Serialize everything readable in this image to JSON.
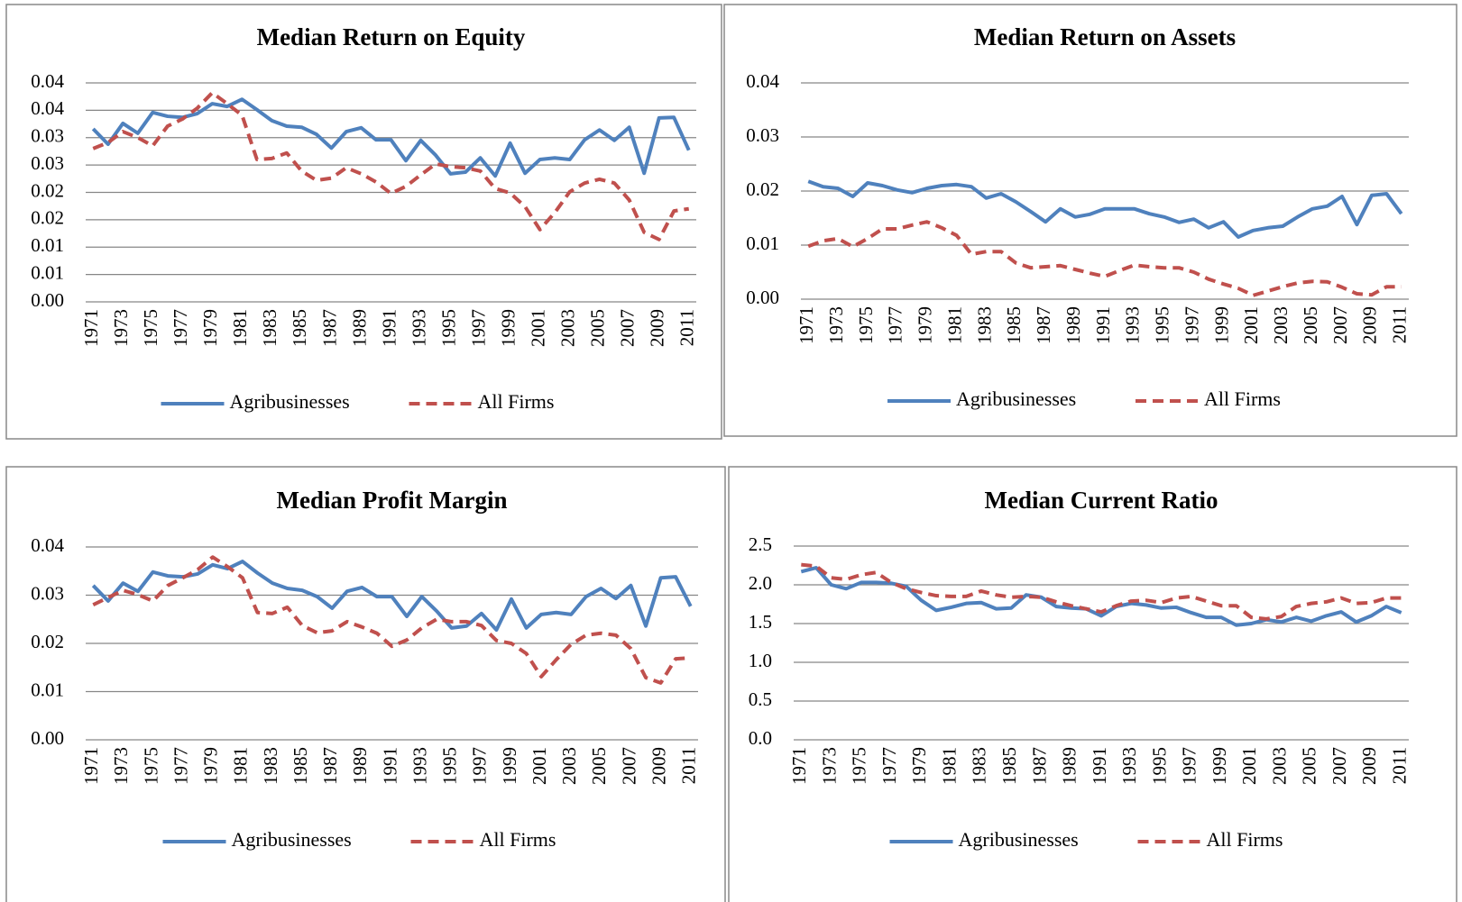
{
  "chart_data": [
    {
      "type": "line",
      "title": "Median Return on Equity",
      "categories": [
        "1971",
        null,
        "1973",
        null,
        "1975",
        null,
        "1977",
        null,
        "1979",
        null,
        "1981",
        null,
        "1983",
        null,
        "1985",
        null,
        "1987",
        null,
        "1989",
        null,
        "1991",
        null,
        "1993",
        null,
        "1995",
        null,
        "1997",
        null,
        "1999",
        null,
        "2001",
        null,
        "2003",
        null,
        "2005",
        null,
        "2007",
        null,
        "2009",
        null,
        "2011"
      ],
      "series": [
        {
          "name": "Agribusinesses",
          "color": "#4f81bd",
          "style": "solid",
          "values": [
            0.0316,
            0.0288,
            0.0326,
            0.0308,
            0.0346,
            0.0339,
            0.0337,
            0.0344,
            0.0362,
            0.0357,
            0.037,
            0.0351,
            0.0331,
            0.0321,
            0.0319,
            0.0306,
            0.0281,
            0.0311,
            0.0318,
            0.0296,
            0.0296,
            0.0258,
            0.0295,
            0.0268,
            0.0234,
            0.0237,
            0.0263,
            0.023,
            0.029,
            0.0235,
            0.026,
            0.0263,
            0.026,
            0.0296,
            0.0314,
            0.0295,
            0.0319,
            0.0235,
            0.0336,
            0.0337,
            0.0277
          ]
        },
        {
          "name": "All Firms",
          "color": "#c0504d",
          "style": "dashed",
          "values": [
            0.028,
            0.0291,
            0.0311,
            0.03,
            0.0285,
            0.0321,
            0.0334,
            0.0354,
            0.0382,
            0.0362,
            0.0341,
            0.026,
            0.0262,
            0.0272,
            0.0239,
            0.0222,
            0.0226,
            0.0245,
            0.0234,
            0.0219,
            0.0198,
            0.0211,
            0.0232,
            0.0252,
            0.0247,
            0.0245,
            0.0239,
            0.0207,
            0.0199,
            0.0174,
            0.0132,
            0.0163,
            0.0201,
            0.0217,
            0.0224,
            0.0217,
            0.0186,
            0.0127,
            0.0114,
            0.0166,
            0.017
          ]
        }
      ],
      "ylim": [
        0,
        0.04
      ],
      "yticks": [
        {
          "value": 0,
          "label": "0.00"
        },
        {
          "value": 0.005,
          "label": "0.01"
        },
        0.01,
        {
          "value": 0.015,
          "label": "0.02"
        },
        0.02,
        {
          "value": 0.025,
          "label": "0.03"
        },
        0.03,
        {
          "value": 0.035,
          "label": "0.04"
        },
        0.04
      ],
      "grid": true,
      "legend": "bottom"
    },
    {
      "type": "line",
      "title": "Median Return on Assets",
      "categories": [
        "1971",
        null,
        "1973",
        null,
        "1975",
        null,
        "1977",
        null,
        "1979",
        null,
        "1981",
        null,
        "1983",
        null,
        "1985",
        null,
        "1987",
        null,
        "1989",
        null,
        "1991",
        null,
        "1993",
        null,
        "1995",
        null,
        "1997",
        null,
        "1999",
        null,
        "2001",
        null,
        "2003",
        null,
        "2005",
        null,
        "2007",
        null,
        "2009",
        null,
        "2011"
      ],
      "series": [
        {
          "name": "Agribusinesses",
          "color": "#4f81bd",
          "style": "solid",
          "values": [
            0.0218,
            0.0208,
            0.0205,
            0.019,
            0.0215,
            0.021,
            0.0202,
            0.0197,
            0.0205,
            0.021,
            0.0212,
            0.0208,
            0.0187,
            0.0195,
            0.018,
            0.0162,
            0.0143,
            0.0167,
            0.0152,
            0.0157,
            0.0167,
            0.0167,
            0.0167,
            0.0158,
            0.0152,
            0.0142,
            0.0148,
            0.0132,
            0.0143,
            0.0115,
            0.0127,
            0.0132,
            0.0135,
            0.0152,
            0.0167,
            0.0172,
            0.019,
            0.0138,
            0.0192,
            0.0195,
            0.0158
          ]
        },
        {
          "name": "All Firms",
          "color": "#c0504d",
          "style": "dashed",
          "values": [
            0.0098,
            0.0108,
            0.0112,
            0.0097,
            0.0112,
            0.013,
            0.013,
            0.0137,
            0.0143,
            0.0132,
            0.0118,
            0.0083,
            0.0088,
            0.0088,
            0.0067,
            0.0058,
            0.006,
            0.0062,
            0.0055,
            0.0048,
            0.0042,
            0.0053,
            0.0063,
            0.006,
            0.0058,
            0.0058,
            0.005,
            0.0037,
            0.0028,
            0.002,
            0.0007,
            0.0015,
            0.0023,
            0.003,
            0.0033,
            0.0032,
            0.0022,
            0.001,
            0.0008,
            0.0023,
            0.0023
          ]
        }
      ],
      "ylim": [
        0,
        0.04
      ],
      "yticks": [
        {
          "value": 0,
          "label": "0.00"
        },
        0.01,
        0.02,
        0.03,
        0.04
      ],
      "grid": true,
      "legend": "bottom"
    },
    {
      "type": "line",
      "title": "Median Profit Margin",
      "categories": [
        "1971",
        null,
        "1973",
        null,
        "1975",
        null,
        "1977",
        null,
        "1979",
        null,
        "1981",
        null,
        "1983",
        null,
        "1985",
        null,
        "1987",
        null,
        "1989",
        null,
        "1991",
        null,
        "1993",
        null,
        "1995",
        null,
        "1997",
        null,
        "1999",
        null,
        "2001",
        null,
        "2003",
        null,
        "2005",
        null,
        "2007",
        null,
        "2009",
        null,
        "2011"
      ],
      "series": [
        {
          "name": "Agribusinesses",
          "color": "#4f81bd",
          "style": "solid",
          "values": [
            0.032,
            0.0288,
            0.0325,
            0.0308,
            0.0348,
            0.034,
            0.0338,
            0.0344,
            0.0363,
            0.0355,
            0.037,
            0.0346,
            0.0325,
            0.0314,
            0.031,
            0.0297,
            0.0273,
            0.0308,
            0.0316,
            0.0297,
            0.0297,
            0.0256,
            0.0297,
            0.0267,
            0.0232,
            0.0236,
            0.0262,
            0.0228,
            0.0292,
            0.0232,
            0.026,
            0.0264,
            0.026,
            0.0297,
            0.0314,
            0.0293,
            0.032,
            0.0236,
            0.0336,
            0.0338,
            0.0277
          ]
        },
        {
          "name": "All Firms",
          "color": "#c0504d",
          "style": "dashed",
          "values": [
            0.028,
            0.0295,
            0.031,
            0.0301,
            0.0288,
            0.032,
            0.0336,
            0.0353,
            0.0379,
            0.0359,
            0.0336,
            0.0264,
            0.0262,
            0.0275,
            0.0237,
            0.0222,
            0.0226,
            0.0245,
            0.0234,
            0.0221,
            0.0194,
            0.0207,
            0.0232,
            0.025,
            0.0245,
            0.0245,
            0.0237,
            0.0206,
            0.02,
            0.0179,
            0.0131,
            0.0166,
            0.0198,
            0.0217,
            0.0221,
            0.0217,
            0.0189,
            0.0129,
            0.0118,
            0.0168,
            0.017
          ]
        }
      ],
      "ylim": [
        0,
        0.04
      ],
      "yticks": [
        {
          "value": 0,
          "label": "0.00"
        },
        0.01,
        0.02,
        0.03,
        0.04
      ],
      "grid": true,
      "legend": "bottom"
    },
    {
      "type": "line",
      "title": "Median Current Ratio",
      "categories": [
        "1971",
        null,
        "1973",
        null,
        "1975",
        null,
        "1977",
        null,
        "1979",
        null,
        "1981",
        null,
        "1983",
        null,
        "1985",
        null,
        "1987",
        null,
        "1989",
        null,
        "1991",
        null,
        "1993",
        null,
        "1995",
        null,
        "1997",
        null,
        "1999",
        null,
        "2001",
        null,
        "2003",
        null,
        "2005",
        null,
        "2007",
        null,
        "2009",
        null,
        "2011"
      ],
      "series": [
        {
          "name": "Agribusinesses",
          "color": "#4f81bd",
          "style": "solid",
          "values": [
            2.17,
            2.22,
            2.0,
            1.95,
            2.03,
            2.03,
            2.02,
            1.98,
            1.8,
            1.67,
            1.71,
            1.76,
            1.77,
            1.69,
            1.7,
            1.87,
            1.84,
            1.72,
            1.7,
            1.69,
            1.6,
            1.72,
            1.76,
            1.74,
            1.7,
            1.71,
            1.64,
            1.58,
            1.58,
            1.48,
            1.5,
            1.55,
            1.52,
            1.58,
            1.53,
            1.6,
            1.65,
            1.52,
            1.6,
            1.72,
            1.64
          ]
        },
        {
          "name": "All Firms",
          "color": "#c0504d",
          "style": "dashed",
          "values": [
            2.26,
            2.24,
            2.09,
            2.07,
            2.13,
            2.16,
            2.03,
            1.95,
            1.9,
            1.86,
            1.85,
            1.85,
            1.92,
            1.87,
            1.84,
            1.85,
            1.84,
            1.78,
            1.73,
            1.69,
            1.65,
            1.73,
            1.79,
            1.8,
            1.77,
            1.83,
            1.85,
            1.79,
            1.73,
            1.73,
            1.58,
            1.56,
            1.59,
            1.72,
            1.76,
            1.78,
            1.83,
            1.76,
            1.77,
            1.83,
            1.83
          ]
        }
      ],
      "ylim": [
        0,
        2.5
      ],
      "yticks": [
        {
          "value": 0,
          "label": "0.0"
        },
        0.5,
        {
          "value": 1,
          "label": "1.0"
        },
        1.5,
        {
          "value": 2,
          "label": "2.0"
        },
        2.5
      ],
      "grid": true,
      "legend": "bottom"
    }
  ]
}
